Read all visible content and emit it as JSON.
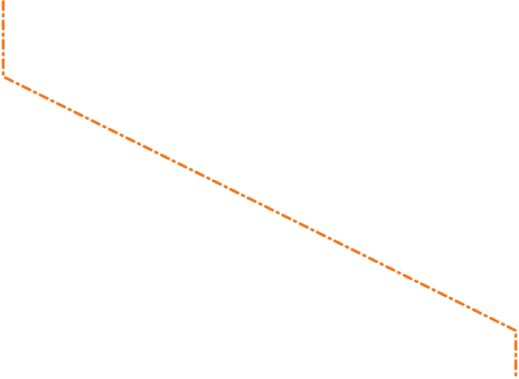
{
  "connector": {
    "color": "#f07316",
    "line_style": "dash-dot",
    "shape": "orthogonal-diagonal-elbow"
  }
}
